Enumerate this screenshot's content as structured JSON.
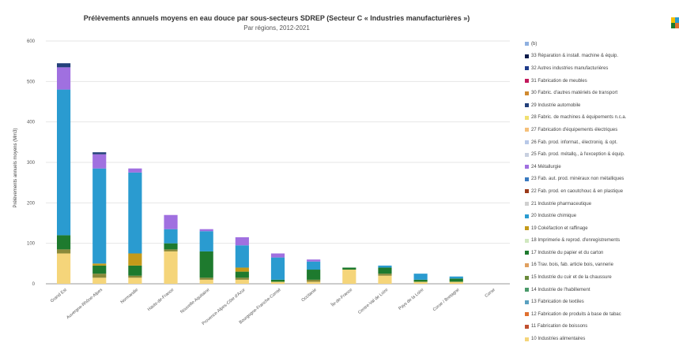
{
  "chart_data": {
    "type": "bar",
    "stacked": true,
    "title": "Prélèvements annuels moyens en eau douce par sous-secteurs SDREP (Secteur C « Industries manufacturières »)",
    "subtitle": "Par régions, 2012-2021",
    "ylabel": "Prélèvements annuels moyens (Mm3)",
    "ylim": [
      0,
      600
    ],
    "yticks": [
      0,
      100,
      200,
      300,
      400,
      500,
      600
    ],
    "categories": [
      "Grand Est",
      "Auvergne-Rhône-Alpes",
      "Normandie",
      "Hauts-de-France",
      "Nouvelle-Aquitaine",
      "Provence-Alpes-Côte d'Azur",
      "Bourgogne-Franche-Comté",
      "Occitanie",
      "Île-de-France",
      "Centre-Val de Loire",
      "Pays de la Loire",
      "Corse / Bretagne",
      "Corse"
    ],
    "series": [
      {
        "name": "10 Industries alimentaires",
        "color": "#f5d57a",
        "values": [
          75,
          15,
          15,
          80,
          10,
          10,
          5,
          5,
          35,
          20,
          5,
          5,
          0
        ]
      },
      {
        "name": "16 Travail du bois",
        "color": "#8a8a3a",
        "values": [
          10,
          10,
          5,
          5,
          5,
          5,
          0,
          5,
          0,
          5,
          0,
          0,
          0
        ]
      },
      {
        "name": "17 Industrie du papier et du carton",
        "color": "#1e7a2e",
        "values": [
          35,
          20,
          25,
          15,
          65,
          15,
          5,
          25,
          5,
          15,
          5,
          8,
          0
        ]
      },
      {
        "name": "19 Cokéfaction et raffinage",
        "color": "#c49a1a",
        "values": [
          0,
          5,
          30,
          0,
          0,
          10,
          0,
          0,
          0,
          0,
          0,
          0,
          0
        ]
      },
      {
        "name": "20 Industrie chimique",
        "color": "#2a9bd0",
        "values": [
          360,
          235,
          200,
          35,
          50,
          55,
          55,
          20,
          0,
          5,
          15,
          5,
          0
        ]
      },
      {
        "name": "24 Métallurgie",
        "color": "#a070e0",
        "values": [
          55,
          35,
          10,
          35,
          5,
          20,
          10,
          5,
          0,
          0,
          0,
          0,
          0
        ]
      },
      {
        "name": "29 Industrie automobile",
        "color": "#23407a",
        "values": [
          10,
          5,
          0,
          0,
          0,
          0,
          0,
          0,
          0,
          0,
          0,
          0,
          0
        ]
      }
    ],
    "legend_position": "right",
    "legend": [
      "(b)",
      "33 Réparation & install. machine & équip.",
      "32 Autres industries manufacturières",
      "31 Fabrication de meubles",
      "30 Fabric. d'autres matériels de transport",
      "29 Industrie automobile",
      "28 Fabric. de machines & équipements n.c.a.",
      "27 Fabrication d'équipements électriques",
      "26 Fab. prod. informat., électroniq. & opt.",
      "25 Fab. prod. métallq., à l'exception & équip.",
      "24 Métallurgie",
      "23 Fab. aut. prod. minéraux non métalliques",
      "22 Fab. prod. en caoutchouc & en plastique",
      "21 Industrie pharmaceutique",
      "20 Industrie chimique",
      "19 Cokéfaction et raffinage",
      "18 Imprimerie & reprod. d'enregistrements",
      "17 Industrie du papier et du carton",
      "16 Trav. bois, fab. article bois, vannerie",
      "15 Industrie du cuir et de la chaussure",
      "14 Industrie de l'habillement",
      "13 Fabrication de textiles",
      "12 Fabrication de produits à base de tabac",
      "11 Fabrication de boissons",
      "10 Industries alimentaires"
    ],
    "legend_colors": [
      "#8fb0e0",
      "#0d1b4a",
      "#1f3b8a",
      "#c2185b",
      "#d08a30",
      "#23407a",
      "#f0e070",
      "#f5c07a",
      "#b8c8e8",
      "#c8d0e0",
      "#a070e0",
      "#3a7ac0",
      "#9a3a1a",
      "#d0d0d0",
      "#2a9bd0",
      "#c49a1a",
      "#d0e8c0",
      "#1e7a2e",
      "#e0a060",
      "#6a8a3a",
      "#4a9a6a",
      "#5aa0c0",
      "#e07030",
      "#c05030",
      "#f5d57a"
    ]
  }
}
